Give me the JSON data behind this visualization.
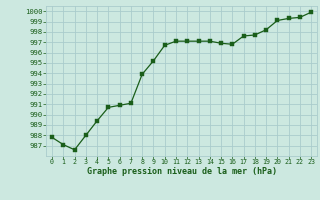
{
  "x": [
    0,
    1,
    2,
    3,
    4,
    5,
    6,
    7,
    8,
    9,
    10,
    11,
    12,
    13,
    14,
    15,
    16,
    17,
    18,
    19,
    20,
    21,
    22,
    23
  ],
  "y": [
    987.8,
    987.1,
    986.6,
    988.0,
    989.4,
    990.7,
    990.9,
    991.1,
    993.9,
    995.2,
    996.7,
    997.1,
    997.1,
    997.1,
    997.1,
    996.9,
    996.8,
    997.6,
    997.7,
    998.2,
    999.1,
    999.3,
    999.4,
    999.9
  ],
  "line_color": "#1a5e1a",
  "marker_color": "#1a5e1a",
  "bg_color": "#cce8e0",
  "grid_color": "#aacccc",
  "xlabel": "Graphe pression niveau de la mer (hPa)",
  "ylim": [
    986.0,
    1000.5
  ],
  "xlim": [
    -0.5,
    23.5
  ],
  "yticks": [
    987,
    988,
    989,
    990,
    991,
    992,
    993,
    994,
    995,
    996,
    997,
    998,
    999,
    1000
  ],
  "xticks": [
    0,
    1,
    2,
    3,
    4,
    5,
    6,
    7,
    8,
    9,
    10,
    11,
    12,
    13,
    14,
    15,
    16,
    17,
    18,
    19,
    20,
    21,
    22,
    23
  ]
}
